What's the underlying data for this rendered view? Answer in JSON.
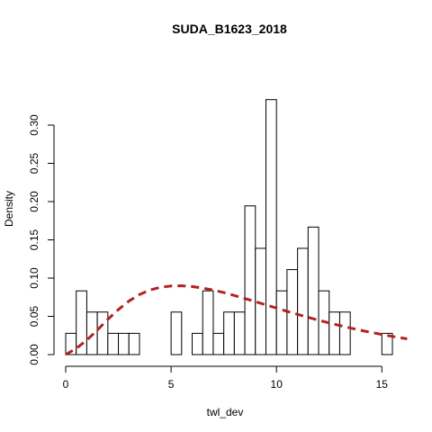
{
  "chart_data": {
    "type": "histogram",
    "title": "SUDA_B1623_2018",
    "xlabel": "twl_dev",
    "ylabel": "Density",
    "xlim": [
      0,
      16.5
    ],
    "ylim": [
      0,
      0.34
    ],
    "xticks": [
      "0",
      "5",
      "10",
      "15"
    ],
    "yticks": [
      "0.00",
      "0.05",
      "0.10",
      "0.15",
      "0.20",
      "0.25",
      "0.30"
    ],
    "bin_width": 0.5,
    "bins": [
      {
        "start": 0.0,
        "end": 0.5,
        "density": 0.0278
      },
      {
        "start": 0.5,
        "end": 1.0,
        "density": 0.0833
      },
      {
        "start": 1.0,
        "end": 1.5,
        "density": 0.0556
      },
      {
        "start": 1.5,
        "end": 2.0,
        "density": 0.0556
      },
      {
        "start": 2.0,
        "end": 2.5,
        "density": 0.0278
      },
      {
        "start": 2.5,
        "end": 3.0,
        "density": 0.0278
      },
      {
        "start": 3.0,
        "end": 3.5,
        "density": 0.0278
      },
      {
        "start": 3.5,
        "end": 4.0,
        "density": 0
      },
      {
        "start": 4.0,
        "end": 4.5,
        "density": 0
      },
      {
        "start": 4.5,
        "end": 5.0,
        "density": 0
      },
      {
        "start": 5.0,
        "end": 5.5,
        "density": 0.0556
      },
      {
        "start": 5.5,
        "end": 6.0,
        "density": 0
      },
      {
        "start": 6.0,
        "end": 6.5,
        "density": 0.0278
      },
      {
        "start": 6.5,
        "end": 7.0,
        "density": 0.0833
      },
      {
        "start": 7.0,
        "end": 7.5,
        "density": 0.0278
      },
      {
        "start": 7.5,
        "end": 8.0,
        "density": 0.0556
      },
      {
        "start": 8.0,
        "end": 8.5,
        "density": 0.0556
      },
      {
        "start": 8.5,
        "end": 9.0,
        "density": 0.1944
      },
      {
        "start": 9.0,
        "end": 9.5,
        "density": 0.1389
      },
      {
        "start": 9.5,
        "end": 10.0,
        "density": 0.3333
      },
      {
        "start": 10.0,
        "end": 10.5,
        "density": 0.0833
      },
      {
        "start": 10.5,
        "end": 11.0,
        "density": 0.1111
      },
      {
        "start": 11.0,
        "end": 11.5,
        "density": 0.1389
      },
      {
        "start": 11.5,
        "end": 12.0,
        "density": 0.1667
      },
      {
        "start": 12.0,
        "end": 12.5,
        "density": 0.0833
      },
      {
        "start": 12.5,
        "end": 13.0,
        "density": 0.0556
      },
      {
        "start": 13.0,
        "end": 13.5,
        "density": 0.0556
      },
      {
        "start": 13.5,
        "end": 14.0,
        "density": 0
      },
      {
        "start": 14.0,
        "end": 14.5,
        "density": 0
      },
      {
        "start": 14.5,
        "end": 15.0,
        "density": 0
      },
      {
        "start": 15.0,
        "end": 15.5,
        "density": 0.0278
      }
    ],
    "curve": {
      "color": "#b22222",
      "style": "dashed",
      "points": [
        [
          0.0,
          0.0
        ],
        [
          0.5,
          0.008
        ],
        [
          1.0,
          0.019
        ],
        [
          1.5,
          0.032
        ],
        [
          2.0,
          0.046
        ],
        [
          2.5,
          0.059
        ],
        [
          3.0,
          0.07
        ],
        [
          3.5,
          0.0785
        ],
        [
          4.0,
          0.0845
        ],
        [
          4.5,
          0.088
        ],
        [
          5.0,
          0.0898
        ],
        [
          5.5,
          0.09
        ],
        [
          6.0,
          0.089
        ],
        [
          6.5,
          0.087
        ],
        [
          7.0,
          0.0843
        ],
        [
          7.5,
          0.081
        ],
        [
          8.0,
          0.0773
        ],
        [
          8.5,
          0.0733
        ],
        [
          9.0,
          0.0692
        ],
        [
          9.5,
          0.065
        ],
        [
          10.0,
          0.0608
        ],
        [
          10.5,
          0.0566
        ],
        [
          11.0,
          0.0526
        ],
        [
          11.5,
          0.0487
        ],
        [
          12.0,
          0.045
        ],
        [
          12.5,
          0.0414
        ],
        [
          13.0,
          0.038
        ],
        [
          13.5,
          0.0348
        ],
        [
          14.0,
          0.0318
        ],
        [
          14.5,
          0.029
        ],
        [
          15.0,
          0.0263
        ],
        [
          15.5,
          0.0238
        ],
        [
          16.2,
          0.0206
        ]
      ]
    },
    "colors": {
      "bar_fill": "#ffffff",
      "bar_stroke": "#000000",
      "curve": "#b22222"
    },
    "grid": false,
    "legend": "none"
  }
}
